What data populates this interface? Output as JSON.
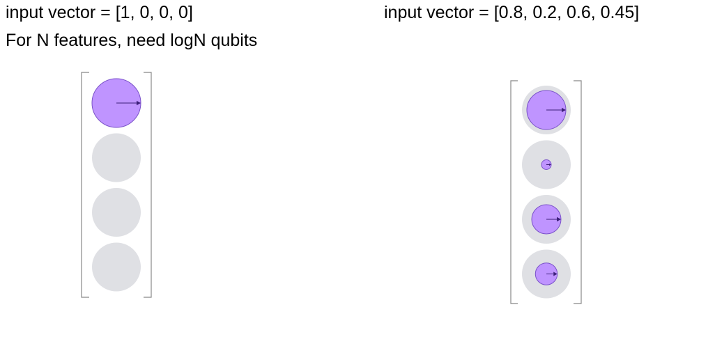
{
  "left_panel": {
    "title": "input vector = [1, 0, 0, 0]",
    "caption": "For N features, need logN qubits",
    "amplitudes": [
      1,
      0,
      0,
      0
    ]
  },
  "right_panel": {
    "title": "input vector = [0.8, 0.2, 0.6, 0.45]",
    "amplitudes": [
      0.8,
      0.2,
      0.6,
      0.45
    ]
  },
  "colors": {
    "filled": "#bf94ff",
    "filled_stroke": "#7a52c9",
    "empty": "#dfe0e4",
    "arrow": "#3d1f7a",
    "bracket": "#888888"
  },
  "icons": {
    "state_marker": "amplitude-circle-icon",
    "phase_arrow": "arrow-right-icon"
  }
}
